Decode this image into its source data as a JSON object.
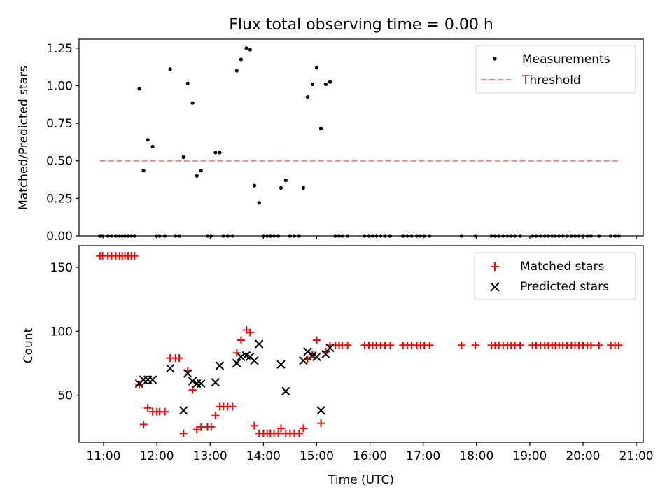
{
  "figure": {
    "title": "Flux total observing time = 0.00 h",
    "colors": {
      "measurement": "#000000",
      "threshold": "#ff8080",
      "matched": "#ff0000",
      "predicted": "#000000"
    }
  },
  "chart_data": [
    {
      "type": "scatter",
      "title": "Flux total observing time = 0.00 h",
      "xlabel": "",
      "ylabel": "Matched/Predicted stars",
      "x_unit": "hour_utc",
      "xlim": [
        10.54,
        21.13
      ],
      "ylim": [
        0,
        1.31
      ],
      "yticks": [
        0.0,
        0.25,
        0.5,
        0.75,
        1.0,
        1.25
      ],
      "yticklabels": [
        "0.00",
        "0.25",
        "0.50",
        "0.75",
        "1.00",
        "1.25"
      ],
      "xticks_unlabeled": [
        11,
        12,
        13,
        14,
        15,
        16,
        17,
        18,
        19,
        20,
        21
      ],
      "grid": false,
      "legend": {
        "location": "upper right",
        "entries": [
          "Measurements",
          "Threshold"
        ]
      },
      "series": [
        {
          "name": "Measurements",
          "style": "dot",
          "points": [
            [
              10.93,
              0
            ],
            [
              10.98,
              0
            ],
            [
              11.08,
              0
            ],
            [
              11.15,
              0
            ],
            [
              11.23,
              0
            ],
            [
              11.3,
              0
            ],
            [
              11.35,
              0
            ],
            [
              11.4,
              0
            ],
            [
              11.46,
              0
            ],
            [
              11.52,
              0
            ],
            [
              11.58,
              0
            ],
            [
              11.67,
              0.98
            ],
            [
              11.75,
              0.435
            ],
            [
              11.83,
              0.64
            ],
            [
              11.92,
              0.595
            ],
            [
              12.0,
              0
            ],
            [
              12.05,
              0
            ],
            [
              12.15,
              0
            ],
            [
              12.25,
              1.11
            ],
            [
              12.35,
              0
            ],
            [
              12.42,
              0
            ],
            [
              12.5,
              0.525
            ],
            [
              12.58,
              1.015
            ],
            [
              12.67,
              0.885
            ],
            [
              12.75,
              0.4
            ],
            [
              12.83,
              0.435
            ],
            [
              12.95,
              0
            ],
            [
              13.02,
              0
            ],
            [
              13.1,
              0.555
            ],
            [
              13.18,
              0.555
            ],
            [
              13.25,
              0
            ],
            [
              13.33,
              0
            ],
            [
              13.42,
              0
            ],
            [
              13.5,
              1.1
            ],
            [
              13.58,
              1.175
            ],
            [
              13.68,
              1.25
            ],
            [
              13.75,
              1.24
            ],
            [
              13.83,
              0.335
            ],
            [
              13.92,
              0.22
            ],
            [
              14.0,
              0
            ],
            [
              14.07,
              0
            ],
            [
              14.13,
              0
            ],
            [
              14.2,
              0
            ],
            [
              14.28,
              0
            ],
            [
              14.33,
              0.32
            ],
            [
              14.42,
              0.37
            ],
            [
              14.5,
              0
            ],
            [
              14.58,
              0
            ],
            [
              14.67,
              0
            ],
            [
              14.75,
              0.32
            ],
            [
              14.83,
              0.925
            ],
            [
              14.92,
              1.01
            ],
            [
              15.0,
              1.12
            ],
            [
              15.08,
              0.715
            ],
            [
              15.17,
              1.01
            ],
            [
              15.25,
              1.025
            ],
            [
              15.35,
              0
            ],
            [
              15.42,
              0
            ],
            [
              15.48,
              0
            ],
            [
              15.58,
              0
            ],
            [
              15.9,
              0
            ],
            [
              15.98,
              0
            ],
            [
              16.05,
              0
            ],
            [
              16.12,
              0
            ],
            [
              16.2,
              0
            ],
            [
              16.28,
              0
            ],
            [
              16.38,
              0
            ],
            [
              16.62,
              0
            ],
            [
              16.7,
              0
            ],
            [
              16.78,
              0
            ],
            [
              16.88,
              0
            ],
            [
              16.95,
              0
            ],
            [
              17.02,
              0
            ],
            [
              17.12,
              0
            ],
            [
              17.72,
              0
            ],
            [
              17.98,
              0
            ],
            [
              18.28,
              0
            ],
            [
              18.35,
              0
            ],
            [
              18.42,
              0
            ],
            [
              18.5,
              0
            ],
            [
              18.58,
              0
            ],
            [
              18.65,
              0
            ],
            [
              18.72,
              0
            ],
            [
              18.82,
              0
            ],
            [
              19.05,
              0
            ],
            [
              19.12,
              0
            ],
            [
              19.2,
              0
            ],
            [
              19.28,
              0
            ],
            [
              19.35,
              0
            ],
            [
              19.42,
              0
            ],
            [
              19.48,
              0
            ],
            [
              19.55,
              0
            ],
            [
              19.62,
              0
            ],
            [
              19.7,
              0
            ],
            [
              19.78,
              0
            ],
            [
              19.85,
              0
            ],
            [
              19.92,
              0
            ],
            [
              20.0,
              0
            ],
            [
              20.08,
              0
            ],
            [
              20.15,
              0
            ],
            [
              20.3,
              0
            ],
            [
              20.52,
              0
            ],
            [
              20.6,
              0
            ],
            [
              20.67,
              0
            ]
          ]
        },
        {
          "name": "Threshold",
          "style": "dashed-line",
          "x": [
            10.93,
            20.67
          ],
          "y": [
            0.5,
            0.5
          ]
        }
      ]
    },
    {
      "type": "scatter",
      "xlabel": "Time (UTC)",
      "ylabel": "Count",
      "x_unit": "hour_utc",
      "xlim": [
        10.54,
        21.13
      ],
      "ylim": [
        13,
        167
      ],
      "yticks": [
        50,
        100,
        150
      ],
      "yticklabels": [
        "50",
        "100",
        "150"
      ],
      "xticks": [
        11,
        12,
        13,
        14,
        15,
        16,
        17,
        18,
        19,
        20,
        21
      ],
      "xticklabels": [
        "11:00",
        "12:00",
        "13:00",
        "14:00",
        "15:00",
        "16:00",
        "17:00",
        "18:00",
        "19:00",
        "20:00",
        "21:00"
      ],
      "grid": false,
      "legend": {
        "location": "upper right",
        "entries": [
          "Matched stars",
          "Predicted stars"
        ]
      },
      "series": [
        {
          "name": "Matched stars",
          "style": "plus",
          "points": [
            [
              10.93,
              159
            ],
            [
              10.98,
              159
            ],
            [
              11.08,
              159
            ],
            [
              11.15,
              159
            ],
            [
              11.23,
              159
            ],
            [
              11.3,
              159
            ],
            [
              11.35,
              159
            ],
            [
              11.4,
              159
            ],
            [
              11.46,
              159
            ],
            [
              11.52,
              159
            ],
            [
              11.58,
              159
            ],
            [
              11.67,
              58
            ],
            [
              11.75,
              27
            ],
            [
              11.83,
              40
            ],
            [
              11.92,
              37
            ],
            [
              12.0,
              37
            ],
            [
              12.05,
              37
            ],
            [
              12.15,
              37
            ],
            [
              12.25,
              79
            ],
            [
              12.35,
              79
            ],
            [
              12.42,
              79
            ],
            [
              12.5,
              20
            ],
            [
              12.58,
              69
            ],
            [
              12.67,
              54
            ],
            [
              12.75,
              23
            ],
            [
              12.83,
              25
            ],
            [
              12.95,
              25
            ],
            [
              13.02,
              25
            ],
            [
              13.1,
              34
            ],
            [
              13.18,
              41
            ],
            [
              13.25,
              41
            ],
            [
              13.33,
              41
            ],
            [
              13.42,
              41
            ],
            [
              13.5,
              83
            ],
            [
              13.58,
              93
            ],
            [
              13.68,
              101
            ],
            [
              13.75,
              99
            ],
            [
              13.83,
              26
            ],
            [
              13.92,
              20
            ],
            [
              14.0,
              20
            ],
            [
              14.07,
              20
            ],
            [
              14.13,
              20
            ],
            [
              14.2,
              20
            ],
            [
              14.28,
              20
            ],
            [
              14.33,
              24
            ],
            [
              14.42,
              20
            ],
            [
              14.5,
              20
            ],
            [
              14.58,
              20
            ],
            [
              14.67,
              20
            ],
            [
              14.75,
              24
            ],
            [
              14.83,
              78
            ],
            [
              14.92,
              82
            ],
            [
              15.0,
              93
            ],
            [
              15.08,
              28
            ],
            [
              15.17,
              84
            ],
            [
              15.25,
              89
            ],
            [
              15.35,
              89
            ],
            [
              15.42,
              89
            ],
            [
              15.48,
              89
            ],
            [
              15.58,
              89
            ],
            [
              15.9,
              89
            ],
            [
              15.98,
              89
            ],
            [
              16.05,
              89
            ],
            [
              16.12,
              89
            ],
            [
              16.2,
              89
            ],
            [
              16.28,
              89
            ],
            [
              16.38,
              89
            ],
            [
              16.62,
              89
            ],
            [
              16.7,
              89
            ],
            [
              16.78,
              89
            ],
            [
              16.88,
              89
            ],
            [
              16.95,
              89
            ],
            [
              17.02,
              89
            ],
            [
              17.12,
              89
            ],
            [
              17.72,
              89
            ],
            [
              17.98,
              89
            ],
            [
              18.28,
              89
            ],
            [
              18.35,
              89
            ],
            [
              18.42,
              89
            ],
            [
              18.5,
              89
            ],
            [
              18.58,
              89
            ],
            [
              18.65,
              89
            ],
            [
              18.72,
              89
            ],
            [
              18.82,
              89
            ],
            [
              19.05,
              89
            ],
            [
              19.12,
              89
            ],
            [
              19.2,
              89
            ],
            [
              19.28,
              89
            ],
            [
              19.35,
              89
            ],
            [
              19.42,
              89
            ],
            [
              19.48,
              89
            ],
            [
              19.55,
              89
            ],
            [
              19.62,
              89
            ],
            [
              19.7,
              89
            ],
            [
              19.78,
              89
            ],
            [
              19.85,
              89
            ],
            [
              19.92,
              89
            ],
            [
              20.0,
              89
            ],
            [
              20.08,
              89
            ],
            [
              20.15,
              89
            ],
            [
              20.3,
              89
            ],
            [
              20.52,
              89
            ],
            [
              20.6,
              89
            ],
            [
              20.67,
              89
            ]
          ]
        },
        {
          "name": "Predicted stars",
          "style": "x",
          "points": [
            [
              11.67,
              59
            ],
            [
              11.75,
              62
            ],
            [
              11.83,
              62
            ],
            [
              11.92,
              62
            ],
            [
              12.25,
              71
            ],
            [
              12.5,
              38
            ],
            [
              12.58,
              67
            ],
            [
              12.67,
              61
            ],
            [
              12.75,
              59
            ],
            [
              12.83,
              59
            ],
            [
              13.1,
              60
            ],
            [
              13.18,
              73
            ],
            [
              13.5,
              75
            ],
            [
              13.58,
              80
            ],
            [
              13.68,
              81
            ],
            [
              13.75,
              80
            ],
            [
              13.83,
              77
            ],
            [
              13.92,
              90
            ],
            [
              14.33,
              74
            ],
            [
              14.42,
              53
            ],
            [
              14.75,
              77
            ],
            [
              14.83,
              84
            ],
            [
              14.92,
              81
            ],
            [
              15.0,
              80
            ],
            [
              15.08,
              38
            ],
            [
              15.17,
              82
            ],
            [
              15.25,
              87
            ]
          ]
        }
      ]
    }
  ]
}
